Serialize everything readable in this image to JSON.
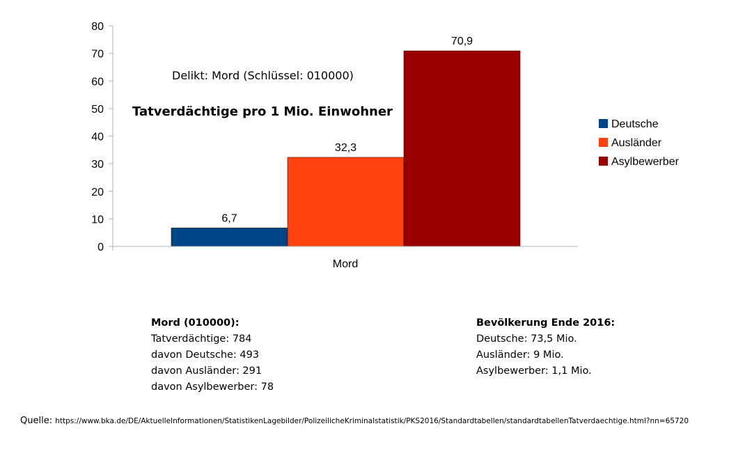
{
  "chart_data": {
    "type": "bar",
    "categories": [
      "Mord"
    ],
    "series": [
      {
        "name": "Deutsche",
        "values": [
          6.7
        ],
        "label": "6,7",
        "color": "#004586"
      },
      {
        "name": "Ausländer",
        "values": [
          32.3
        ],
        "label": "32,3",
        "color": "#ff420e"
      },
      {
        "name": "Asylbewerber",
        "values": [
          70.9
        ],
        "label": "70,9",
        "color": "#990000"
      }
    ],
    "ylim": [
      0,
      80
    ],
    "yticks": [
      0,
      10,
      20,
      30,
      40,
      50,
      60,
      70,
      80
    ],
    "grid": false,
    "legend_position": "right",
    "annotations": [
      "Delikt: Mord (Schlüssel: 010000)",
      "Tatverdächtige pro 1 Mio. Einwohner"
    ]
  },
  "info_left": {
    "heading": "Mord (010000):",
    "lines": [
      "Tatverdächtige: 784",
      "davon Deutsche: 493",
      "davon Ausländer: 291",
      "davon Asylbewerber: 78"
    ]
  },
  "info_right": {
    "heading": "Bevölkerung Ende 2016:",
    "lines": [
      "Deutsche: 73,5 Mio.",
      "Ausländer: 9 Mio.",
      "Asylbewerber: 1,1 Mio."
    ]
  },
  "source": {
    "label": "Quelle:",
    "url": "https://www.bka.de/DE/AktuelleInformationen/StatistikenLagebilder/PolizeilicheKriminalstatistik/PKS2016/Standardtabellen/standardtabellenTatverdaechtige.html?nn=65720"
  }
}
